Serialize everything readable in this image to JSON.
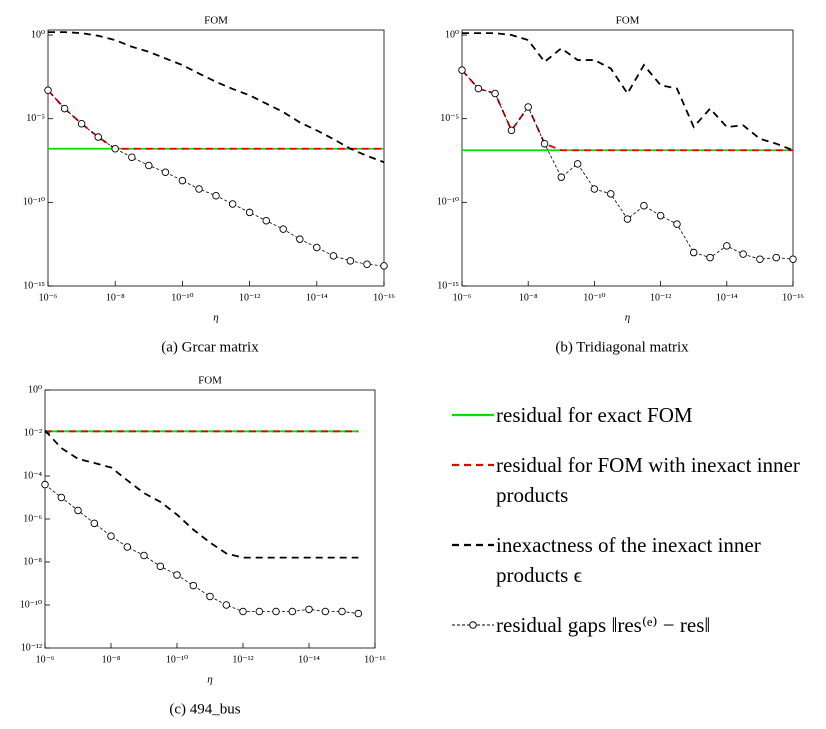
{
  "chart_data": [
    {
      "type": "line",
      "title": "FOM",
      "xlabel": "η",
      "caption": "(a)  Grcar matrix",
      "xscale": "log",
      "yscale": "log",
      "xlim": [
        1e-06,
        1e-16
      ],
      "ylim": [
        1e-15,
        2
      ],
      "xticks": [
        {
          "value": 1e-06,
          "label": "10⁻⁶"
        },
        {
          "value": 1e-08,
          "label": "10⁻⁸"
        },
        {
          "value": 1e-10,
          "label": "10⁻¹⁰"
        },
        {
          "value": 1e-12,
          "label": "10⁻¹²"
        },
        {
          "value": 1e-14,
          "label": "10⁻¹⁴"
        },
        {
          "value": 1e-16,
          "label": "10⁻¹⁶"
        }
      ],
      "yticks": [
        {
          "value": 1,
          "label": "10⁰"
        },
        {
          "value": 1e-05,
          "label": "10⁻⁵"
        },
        {
          "value": 1e-10,
          "label": "10⁻¹⁰"
        },
        {
          "value": 1e-15,
          "label": "10⁻¹⁵"
        }
      ],
      "x": [
        1e-06,
        3.2e-07,
        1e-07,
        3.2e-08,
        1e-08,
        3.2e-09,
        1e-09,
        3.2e-10,
        1e-10,
        3.2e-11,
        1e-11,
        3.2e-12,
        1e-12,
        3.2e-13,
        1e-13,
        3.2e-14,
        1e-14,
        3.2e-15,
        1e-15,
        3.2e-16,
        1e-16
      ],
      "series": [
        {
          "name": "residual for exact FOM",
          "color": "#00e000",
          "linestyle": "solid",
          "values": [
            1.6e-07,
            1.6e-07,
            1.6e-07,
            1.6e-07,
            1.6e-07,
            1.6e-07,
            1.6e-07,
            1.6e-07,
            1.6e-07,
            1.6e-07,
            1.6e-07,
            1.6e-07,
            1.6e-07,
            1.6e-07,
            1.6e-07,
            1.6e-07,
            1.6e-07,
            1.6e-07,
            1.6e-07,
            1.6e-07,
            1.6e-07
          ]
        },
        {
          "name": "residual for FOM with inexact inner products",
          "color": "#e00000",
          "linestyle": "dashed",
          "values": [
            0.0005,
            4e-05,
            5e-06,
            8e-07,
            1.6e-07,
            1.6e-07,
            1.6e-07,
            1.6e-07,
            1.6e-07,
            1.6e-07,
            1.6e-07,
            1.6e-07,
            1.6e-07,
            1.6e-07,
            1.6e-07,
            1.6e-07,
            1.6e-07,
            1.6e-07,
            1.6e-07,
            1.6e-07,
            1.6e-07
          ]
        },
        {
          "name": "inexactness of the inexact inner products ϵ",
          "color": "#000000",
          "linestyle": "dashed",
          "values": [
            1.5,
            1.5,
            1.3,
            0.9,
            0.5,
            0.2,
            0.1,
            0.04,
            0.016,
            0.005,
            0.0016,
            0.0006,
            0.00025,
            8e-05,
            2.5e-05,
            6e-06,
            2e-06,
            6e-07,
            1.6e-07,
            6e-08,
            2.5e-08
          ]
        },
        {
          "name": "residual gaps ‖res⁽ᵉ⁾ − res‖",
          "color": "#000000",
          "linestyle": "dotted",
          "marker": "circle",
          "values": [
            0.0005,
            4e-05,
            5e-06,
            8e-07,
            1.6e-07,
            5e-08,
            1.6e-08,
            6.3e-09,
            2e-09,
            6.3e-10,
            2.5e-10,
            8e-11,
            2.5e-11,
            8e-12,
            2.5e-12,
            6.3e-13,
            2e-13,
            6.3e-14,
            3.2e-14,
            2e-14,
            1.6e-14
          ]
        }
      ]
    },
    {
      "type": "line",
      "title": "FOM",
      "xlabel": "η",
      "caption": "(b)  Tridiagonal matrix",
      "xscale": "log",
      "yscale": "log",
      "xlim": [
        1e-06,
        1e-16
      ],
      "ylim": [
        1e-15,
        2
      ],
      "xticks": [
        {
          "value": 1e-06,
          "label": "10⁻⁶"
        },
        {
          "value": 1e-08,
          "label": "10⁻⁸"
        },
        {
          "value": 1e-10,
          "label": "10⁻¹⁰"
        },
        {
          "value": 1e-12,
          "label": "10⁻¹²"
        },
        {
          "value": 1e-14,
          "label": "10⁻¹⁴"
        },
        {
          "value": 1e-16,
          "label": "10⁻¹⁶"
        }
      ],
      "yticks": [
        {
          "value": 1,
          "label": "10⁰"
        },
        {
          "value": 1e-05,
          "label": "10⁻⁵"
        },
        {
          "value": 1e-10,
          "label": "10⁻¹⁰"
        },
        {
          "value": 1e-15,
          "label": "10⁻¹⁵"
        }
      ],
      "x": [
        1e-06,
        3.2e-07,
        1e-07,
        3.2e-08,
        1e-08,
        3.2e-09,
        1e-09,
        3.2e-10,
        1e-10,
        3.2e-11,
        1e-11,
        3.2e-12,
        1e-12,
        3.2e-13,
        1e-13,
        3.2e-14,
        1e-14,
        3.2e-15,
        1e-15,
        3.2e-16,
        1e-16
      ],
      "series": [
        {
          "name": "residual for exact FOM",
          "color": "#00e000",
          "linestyle": "solid",
          "values": [
            1.3e-07,
            1.3e-07,
            1.3e-07,
            1.3e-07,
            1.3e-07,
            1.3e-07,
            1.3e-07,
            1.3e-07,
            1.3e-07,
            1.3e-07,
            1.3e-07,
            1.3e-07,
            1.3e-07,
            1.3e-07,
            1.3e-07,
            1.3e-07,
            1.3e-07,
            1.3e-07,
            1.3e-07,
            1.3e-07,
            1.3e-07
          ]
        },
        {
          "name": "residual for FOM with inexact inner products",
          "color": "#e00000",
          "linestyle": "dashed",
          "values": [
            0.008,
            0.00063,
            0.00032,
            2e-06,
            5e-05,
            3.2e-07,
            1.3e-07,
            1.3e-07,
            1.3e-07,
            1.3e-07,
            1.3e-07,
            1.3e-07,
            1.3e-07,
            1.3e-07,
            1.3e-07,
            1.3e-07,
            1.3e-07,
            1.3e-07,
            1.3e-07,
            1.3e-07,
            1.3e-07
          ]
        },
        {
          "name": "inexactness of the inexact inner products ϵ",
          "color": "#000000",
          "linestyle": "dashed",
          "values": [
            1.3,
            1.3,
            1.3,
            1,
            0.5,
            0.025,
            0.16,
            0.032,
            0.032,
            0.01,
            0.00032,
            0.016,
            0.001,
            0.00063,
            3.2e-06,
            4e-05,
            3.2e-06,
            4e-06,
            6.3e-07,
            3.2e-07,
            1.3e-07
          ]
        },
        {
          "name": "residual gaps ‖res⁽ᵉ⁾ − res‖",
          "color": "#000000",
          "linestyle": "dotted",
          "marker": "circle",
          "values": [
            0.008,
            0.00063,
            0.00032,
            2e-06,
            5e-05,
            3.2e-07,
            3.2e-09,
            2e-08,
            6.3e-10,
            3.2e-10,
            1e-11,
            6.3e-11,
            1.6e-11,
            5e-12,
            1e-13,
            5e-14,
            2.5e-13,
            8e-14,
            4e-14,
            5e-14,
            4e-14
          ]
        }
      ]
    },
    {
      "type": "line",
      "title": "FOM",
      "xlabel": "η",
      "caption": "(c)  494_bus",
      "xscale": "log",
      "yscale": "log",
      "xlim": [
        1e-06,
        1e-16
      ],
      "ylim": [
        1e-12,
        1
      ],
      "xticks": [
        {
          "value": 1e-06,
          "label": "10⁻⁶"
        },
        {
          "value": 1e-08,
          "label": "10⁻⁸"
        },
        {
          "value": 1e-10,
          "label": "10⁻¹⁰"
        },
        {
          "value": 1e-12,
          "label": "10⁻¹²"
        },
        {
          "value": 1e-14,
          "label": "10⁻¹⁴"
        },
        {
          "value": 1e-16,
          "label": "10⁻¹⁶"
        }
      ],
      "yticks": [
        {
          "value": 1,
          "label": "10⁰"
        },
        {
          "value": 0.01,
          "label": "10⁻²"
        },
        {
          "value": 0.0001,
          "label": "10⁻⁴"
        },
        {
          "value": 1e-06,
          "label": "10⁻⁶"
        },
        {
          "value": 1e-08,
          "label": "10⁻⁸"
        },
        {
          "value": 1e-10,
          "label": "10⁻¹⁰"
        },
        {
          "value": 1e-12,
          "label": "10⁻¹²"
        }
      ],
      "x": [
        1e-06,
        3.2e-07,
        1e-07,
        3.2e-08,
        1e-08,
        3.2e-09,
        1e-09,
        3.2e-10,
        1e-10,
        3.2e-11,
        1e-11,
        3.2e-12,
        1e-12,
        3.2e-13,
        1e-13,
        3.2e-14,
        1e-14,
        3.2e-15,
        1e-15,
        3.2e-16
      ],
      "series": [
        {
          "name": "residual for exact FOM",
          "color": "#00e000",
          "linestyle": "solid",
          "values": [
            0.012,
            0.012,
            0.012,
            0.012,
            0.012,
            0.012,
            0.012,
            0.012,
            0.012,
            0.012,
            0.012,
            0.012,
            0.012,
            0.012,
            0.012,
            0.012,
            0.012,
            0.012,
            0.012,
            0.012
          ]
        },
        {
          "name": "residual for FOM with inexact inner products",
          "color": "#e00000",
          "linestyle": "dashed",
          "values": [
            0.012,
            0.012,
            0.012,
            0.012,
            0.012,
            0.012,
            0.012,
            0.012,
            0.012,
            0.012,
            0.012,
            0.012,
            0.012,
            0.012,
            0.012,
            0.012,
            0.012,
            0.012,
            0.012,
            0.012
          ]
        },
        {
          "name": "inexactness of the inexact inner products ϵ",
          "color": "#000000",
          "linestyle": "dashed",
          "values": [
            0.013,
            0.002,
            0.00063,
            0.0004,
            0.00025,
            6.3e-05,
            1.6e-05,
            6.3e-06,
            1.6e-06,
            3.2e-07,
            8e-08,
            2.5e-08,
            1.6e-08,
            1.6e-08,
            1.6e-08,
            1.6e-08,
            1.6e-08,
            1.6e-08,
            1.6e-08,
            1.6e-08
          ]
        },
        {
          "name": "residual gaps ‖res⁽ᵉ⁾ − res‖",
          "color": "#000000",
          "linestyle": "dotted",
          "marker": "circle",
          "values": [
            4e-05,
            1e-05,
            2.5e-06,
            6.3e-07,
            1.6e-07,
            5e-08,
            2e-08,
            6.3e-09,
            2.5e-09,
            8e-10,
            2.5e-10,
            1e-10,
            5e-11,
            5e-11,
            5e-11,
            5e-11,
            6.3e-11,
            5e-11,
            5e-11,
            4e-11
          ]
        }
      ]
    }
  ]
}
